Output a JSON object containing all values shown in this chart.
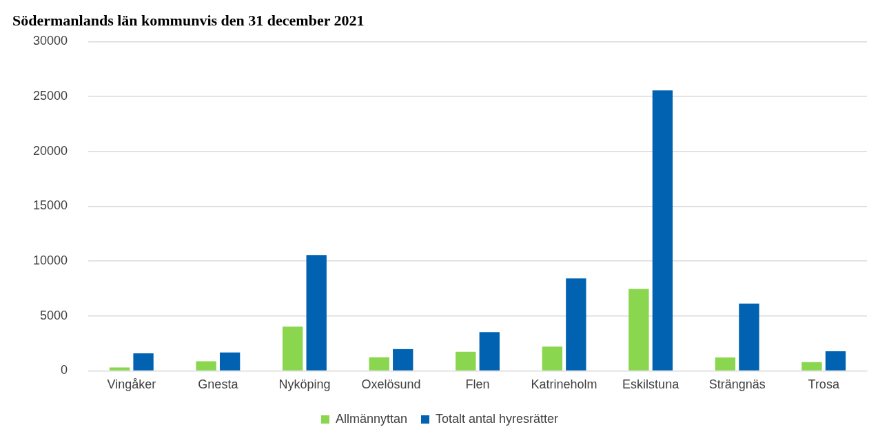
{
  "chart_data": {
    "type": "bar",
    "title": "Södermanlands län kommunvis den 31 december 2021",
    "categories": [
      "Vingåker",
      "Gnesta",
      "Nyköping",
      "Oxelösund",
      "Flen",
      "Katrineholm",
      "Eskilstuna",
      "Strängnäs",
      "Trosa"
    ],
    "series": [
      {
        "name": "Allmännyttan",
        "color": "#8ad64f",
        "values": [
          300,
          880,
          4020,
          1230,
          1740,
          2210,
          7470,
          1220,
          790
        ]
      },
      {
        "name": "Totalt antal hyresrätter",
        "color": "#0062b1",
        "values": [
          1590,
          1680,
          10550,
          1980,
          3530,
          8420,
          25550,
          6130,
          1790
        ]
      }
    ],
    "ylim": [
      0,
      30000
    ],
    "yticks": [
      0,
      5000,
      10000,
      15000,
      20000,
      25000,
      30000
    ],
    "grid": "y",
    "legend": "bottom"
  }
}
